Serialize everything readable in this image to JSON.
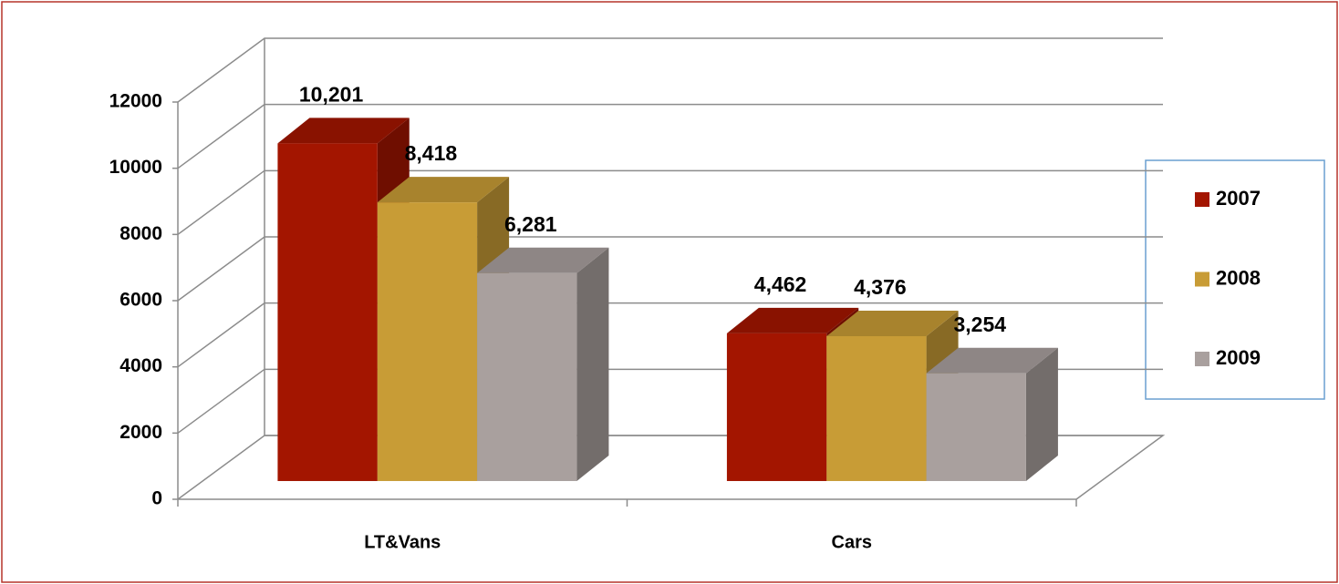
{
  "chart_data": {
    "type": "bar3d",
    "categories": [
      "LT&Vans",
      "Cars"
    ],
    "series": [
      {
        "name": "2007",
        "color": "#a31500",
        "values": [
          10201,
          4462
        ],
        "value_labels": [
          "10,201",
          "4,462"
        ]
      },
      {
        "name": "2008",
        "color": "#c89c36",
        "values": [
          8418,
          4376
        ],
        "value_labels": [
          "8,418",
          "4,376"
        ]
      },
      {
        "name": "2009",
        "color": "#a9a09e",
        "values": [
          6281,
          3254
        ],
        "value_labels": [
          "6,281",
          "3,254"
        ]
      }
    ],
    "ylim": [
      0,
      12000
    ],
    "yticks": [
      0,
      2000,
      4000,
      6000,
      8000,
      10000,
      12000
    ],
    "grid": true,
    "legend": "right"
  }
}
